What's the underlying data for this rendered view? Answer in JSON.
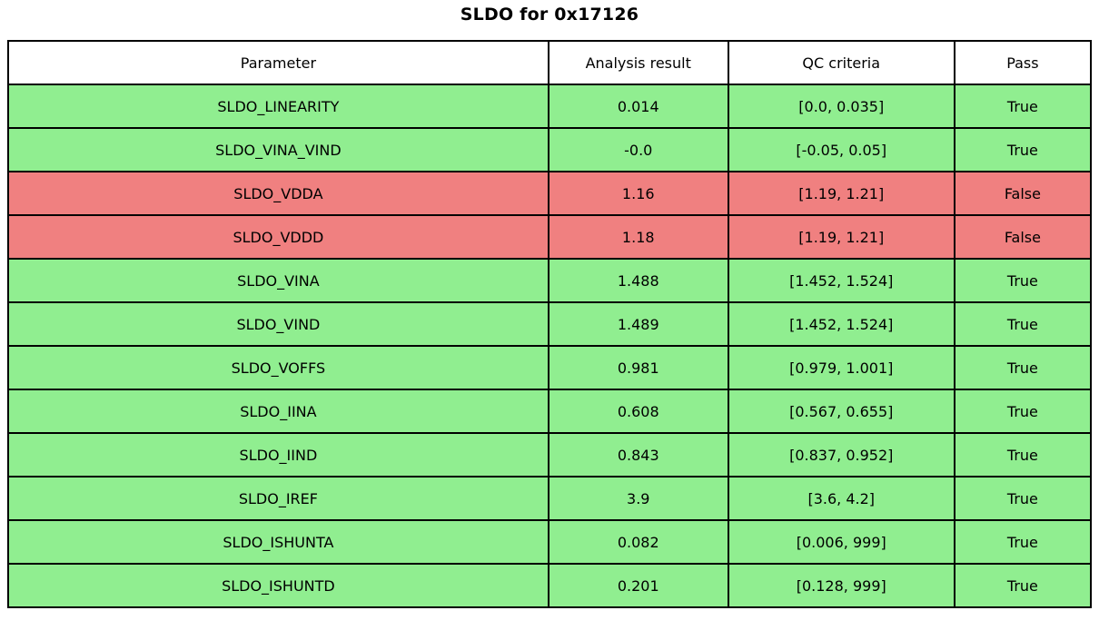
{
  "title": "SLDO for 0x17126",
  "colors": {
    "pass": "#90ee90",
    "fail": "#f08080",
    "header": "#ffffff",
    "border": "#000000"
  },
  "table": {
    "headers": [
      "Parameter",
      "Analysis result",
      "QC criteria",
      "Pass"
    ],
    "rows": [
      {
        "parameter": "SLDO_LINEARITY",
        "result": "0.014",
        "criteria": "[0.0, 0.035]",
        "pass": "True",
        "status": "pass"
      },
      {
        "parameter": "SLDO_VINA_VIND",
        "result": "-0.0",
        "criteria": "[-0.05, 0.05]",
        "pass": "True",
        "status": "pass"
      },
      {
        "parameter": "SLDO_VDDA",
        "result": "1.16",
        "criteria": "[1.19, 1.21]",
        "pass": "False",
        "status": "fail"
      },
      {
        "parameter": "SLDO_VDDD",
        "result": "1.18",
        "criteria": "[1.19, 1.21]",
        "pass": "False",
        "status": "fail"
      },
      {
        "parameter": "SLDO_VINA",
        "result": "1.488",
        "criteria": "[1.452, 1.524]",
        "pass": "True",
        "status": "pass"
      },
      {
        "parameter": "SLDO_VIND",
        "result": "1.489",
        "criteria": "[1.452, 1.524]",
        "pass": "True",
        "status": "pass"
      },
      {
        "parameter": "SLDO_VOFFS",
        "result": "0.981",
        "criteria": "[0.979, 1.001]",
        "pass": "True",
        "status": "pass"
      },
      {
        "parameter": "SLDO_IINA",
        "result": "0.608",
        "criteria": "[0.567, 0.655]",
        "pass": "True",
        "status": "pass"
      },
      {
        "parameter": "SLDO_IIND",
        "result": "0.843",
        "criteria": "[0.837, 0.952]",
        "pass": "True",
        "status": "pass"
      },
      {
        "parameter": "SLDO_IREF",
        "result": "3.9",
        "criteria": "[3.6, 4.2]",
        "pass": "True",
        "status": "pass"
      },
      {
        "parameter": "SLDO_ISHUNTA",
        "result": "0.082",
        "criteria": "[0.006, 999]",
        "pass": "True",
        "status": "pass"
      },
      {
        "parameter": "SLDO_ISHUNTD",
        "result": "0.201",
        "criteria": "[0.128, 999]",
        "pass": "True",
        "status": "pass"
      }
    ]
  },
  "chart_data": {
    "type": "table",
    "title": "SLDO for 0x17126",
    "columns": [
      "Parameter",
      "Analysis result",
      "QC criteria",
      "Pass"
    ],
    "rows": [
      [
        "SLDO_LINEARITY",
        0.014,
        "[0.0, 0.035]",
        true
      ],
      [
        "SLDO_VINA_VIND",
        -0.0,
        "[-0.05, 0.05]",
        true
      ],
      [
        "SLDO_VDDA",
        1.16,
        "[1.19, 1.21]",
        false
      ],
      [
        "SLDO_VDDD",
        1.18,
        "[1.19, 1.21]",
        false
      ],
      [
        "SLDO_VINA",
        1.488,
        "[1.452, 1.524]",
        true
      ],
      [
        "SLDO_VIND",
        1.489,
        "[1.452, 1.524]",
        true
      ],
      [
        "SLDO_VOFFS",
        0.981,
        "[0.979, 1.001]",
        true
      ],
      [
        "SLDO_IINA",
        0.608,
        "[0.567, 0.655]",
        true
      ],
      [
        "SLDO_IIND",
        0.843,
        "[0.837, 0.952]",
        true
      ],
      [
        "SLDO_IREF",
        3.9,
        "[3.6, 4.2]",
        true
      ],
      [
        "SLDO_ISHUNTA",
        0.082,
        "[0.006, 999]",
        true
      ],
      [
        "SLDO_ISHUNTD",
        0.201,
        "[0.128, 999]",
        true
      ]
    ],
    "row_color_legend": {
      "pass": "#90ee90",
      "fail": "#f08080"
    }
  }
}
